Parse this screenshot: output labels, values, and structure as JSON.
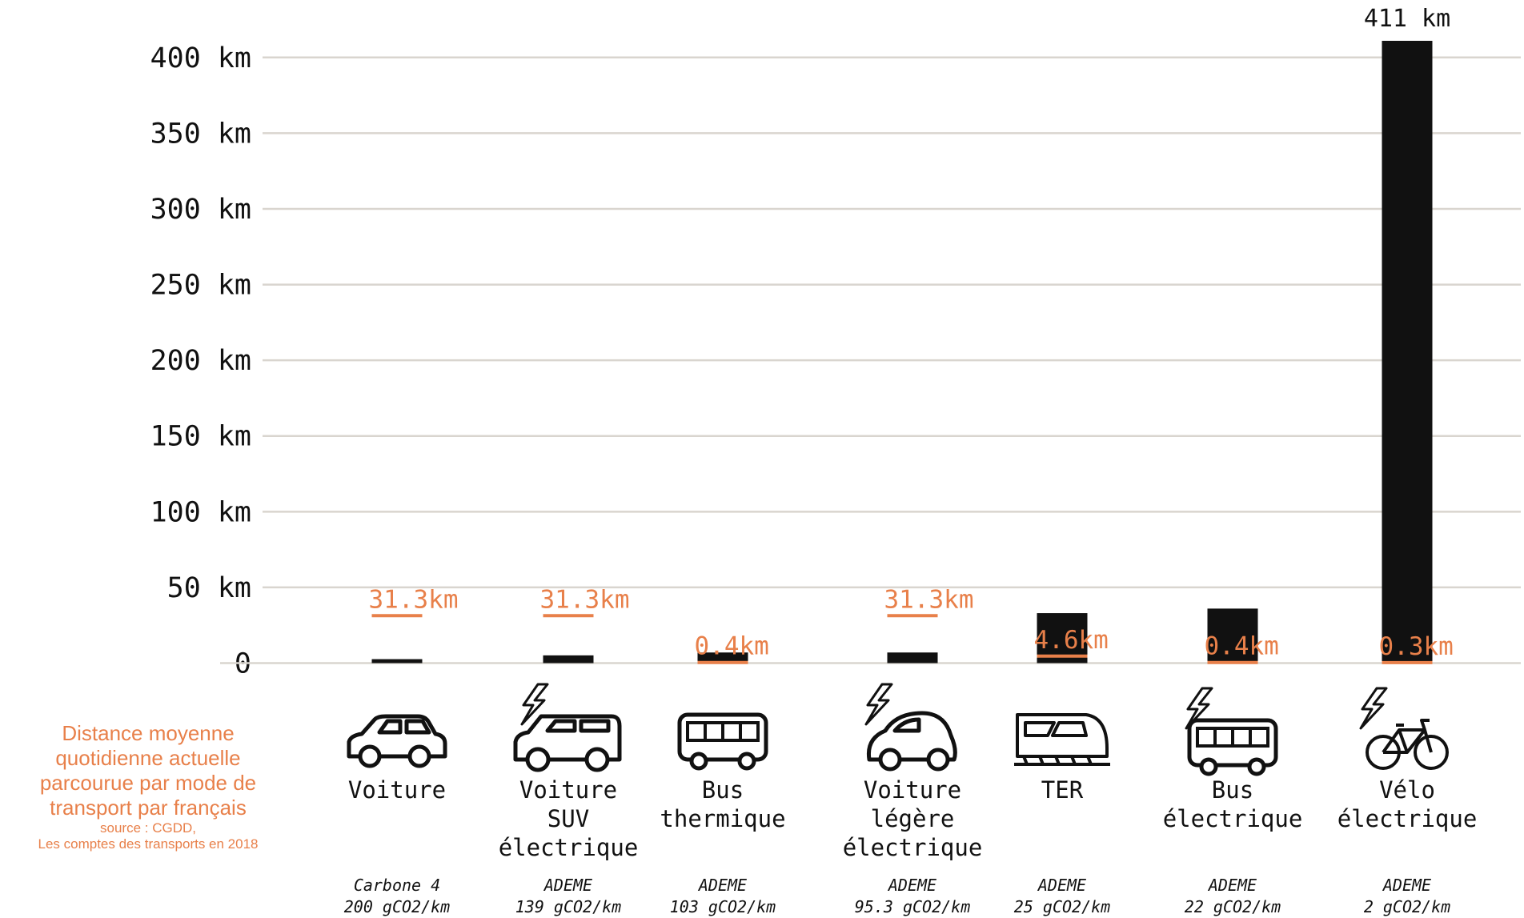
{
  "chart_data": {
    "type": "bar",
    "categories": [
      [
        "Voiture"
      ],
      [
        "Voiture",
        "SUV",
        "électrique"
      ],
      [
        "Bus",
        "thermique"
      ],
      [
        "Voiture",
        "légère",
        "électrique"
      ],
      [
        "TER"
      ],
      [
        "Bus",
        "électrique"
      ],
      [
        "Vélo",
        "électrique"
      ]
    ],
    "series": [
      {
        "color": "#111111",
        "values": [
          2.6,
          5.1,
          7,
          7,
          33,
          36,
          411
        ],
        "value_labels": [
          null,
          null,
          null,
          null,
          null,
          null,
          "411 km"
        ]
      },
      {
        "name": [
          "Distance moyenne",
          "quotidienne actuelle",
          "parcourue par mode de",
          "transport par français"
        ],
        "color": "#e8804a",
        "values": [
          31.3,
          31.3,
          0.4,
          31.3,
          4.6,
          0.4,
          0.3
        ],
        "value_labels": [
          "31.3km",
          "31.3km",
          "0.4km",
          "31.3km",
          "4.6km",
          "0.4km",
          "0.3km"
        ]
      }
    ],
    "source_note": [
      "source : CGDD,",
      "Les comptes des transports en 2018"
    ],
    "sources": [
      {
        "name": "Carbone 4",
        "emission": "200 gCO2/km"
      },
      {
        "name": "ADEME",
        "emission": "139 gCO2/km"
      },
      {
        "name": "ADEME",
        "emission": "103 gCO2/km"
      },
      {
        "name": "ADEME",
        "emission": "95.3 gCO2/km"
      },
      {
        "name": "ADEME",
        "emission": "25 gCO2/km"
      },
      {
        "name": "ADEME",
        "emission": "22 gCO2/km"
      },
      {
        "name": "ADEME",
        "emission": "2 gCO2/km"
      }
    ],
    "ylim": [
      0,
      400
    ],
    "yticks": [
      0,
      {
        "value": 50,
        "label": "50 km"
      },
      {
        "value": 100,
        "label": "100 km"
      },
      {
        "value": 150,
        "label": "150 km"
      },
      {
        "value": 200,
        "label": "200 km"
      },
      {
        "value": 250,
        "label": "250 km"
      },
      {
        "value": 300,
        "label": "300 km"
      },
      {
        "value": 350,
        "label": "350 km"
      },
      {
        "value": 400,
        "label": "400 km"
      }
    ],
    "grid": true
  }
}
